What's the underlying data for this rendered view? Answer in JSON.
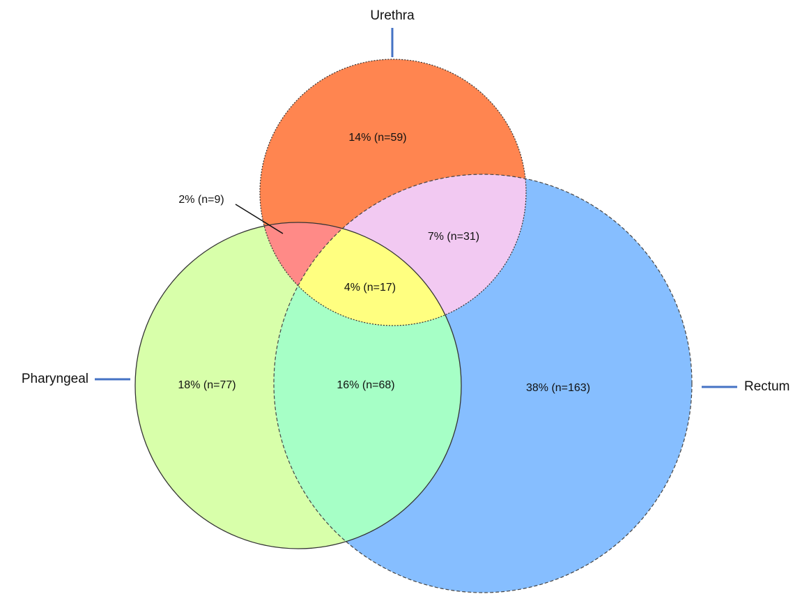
{
  "diagram": {
    "type": "venn",
    "sets": {
      "urethra": {
        "label": "Urethra",
        "color": "#FF8550"
      },
      "pharyngeal": {
        "label": "Pharyngeal",
        "color": "#D8FFAA"
      },
      "rectum": {
        "label": "Rectum",
        "color": "#86BEFF"
      }
    },
    "regions": {
      "urethra_only": {
        "label": "14% (n=59)",
        "percent": 14,
        "n": 59,
        "color": "#FF8550"
      },
      "urethra_pharyngeal": {
        "label": "2% (n=9)",
        "percent": 2,
        "n": 9,
        "color": "#FF8A87"
      },
      "urethra_rectum": {
        "label": "7% (n=31)",
        "percent": 7,
        "n": 31,
        "color": "#F2C9F2"
      },
      "all_three": {
        "label": "4% (n=17)",
        "percent": 4,
        "n": 17,
        "color": "#FFFF80"
      },
      "pharyngeal_only": {
        "label": "18% (n=77)",
        "percent": 18,
        "n": 77,
        "color": "#D8FFAA"
      },
      "pharyngeal_rectum": {
        "label": "16% (n=68)",
        "percent": 16,
        "n": 68,
        "color": "#A6FFC6"
      },
      "rectum_only": {
        "label": "38% (n=163)",
        "percent": 38,
        "n": 163,
        "color": "#86BEFF"
      }
    },
    "label_line_color": "#4472C4"
  }
}
